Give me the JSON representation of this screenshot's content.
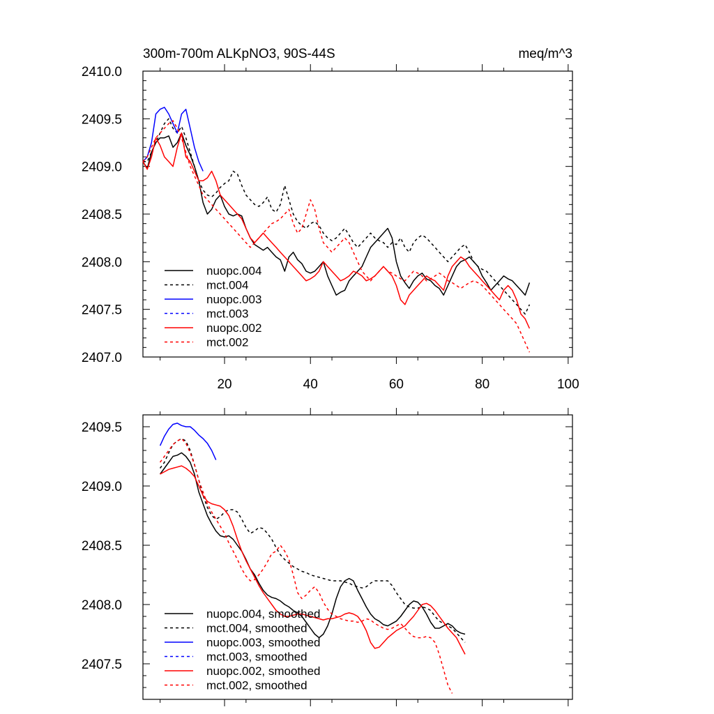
{
  "chart_data": [
    {
      "type": "line",
      "title": "300m-700m ALKpNO3, 90S-44S",
      "units": "meq/m^3",
      "xlim": [
        1,
        101
      ],
      "ylim": [
        2407.0,
        2410.0
      ],
      "xticks": [
        20,
        40,
        60,
        80,
        100
      ],
      "xtick_labels": [
        "20",
        "40",
        "60",
        "80",
        "100"
      ],
      "yticks": [
        2407.0,
        2407.5,
        2408.0,
        2408.5,
        2409.0,
        2409.5,
        2410.0
      ],
      "ytick_labels": [
        "2407.0",
        "2407.5",
        "2408.0",
        "2408.5",
        "2409.0",
        "2409.5",
        "2410.0"
      ],
      "legend_position": "bottom-left",
      "series": [
        {
          "name": "nuopc.004",
          "color": "#000000",
          "dash": "solid",
          "x_start": 1,
          "values": [
            2409.05,
            2408.98,
            2409.15,
            2409.25,
            2409.3,
            2409.3,
            2409.32,
            2409.2,
            2409.25,
            2409.35,
            2409.22,
            2409.12,
            2409.0,
            2408.85,
            2408.62,
            2408.5,
            2408.55,
            2408.65,
            2408.7,
            2408.58,
            2408.5,
            2408.48,
            2408.5,
            2408.48,
            2408.35,
            2408.25,
            2408.18,
            2408.15,
            2408.12,
            2408.15,
            2408.1,
            2408.05,
            2408.02,
            2407.9,
            2408.05,
            2408.1,
            2408.02,
            2407.98,
            2407.9,
            2407.88,
            2407.9,
            2407.95,
            2408.0,
            2407.85,
            2407.75,
            2407.65,
            2407.68,
            2407.7,
            2407.8,
            2407.85,
            2407.9,
            2407.95,
            2408.05,
            2408.15,
            2408.2,
            2408.25,
            2408.3,
            2408.35,
            2408.25,
            2408.0,
            2407.85,
            2407.78,
            2407.72,
            2407.8,
            2407.85,
            2407.88,
            2407.82,
            2407.8,
            2407.75,
            2407.72,
            2407.65,
            2407.75,
            2407.85,
            2407.95,
            2408.0,
            2408.02,
            2408.05,
            2408.0,
            2407.95,
            2407.85,
            2407.78,
            2407.7,
            2407.75,
            2407.8,
            2407.85,
            2407.82,
            2407.8,
            2407.75,
            2407.7,
            2407.65,
            2407.78
          ]
        },
        {
          "name": "mct.004",
          "color": "#000000",
          "dash": "dashed",
          "x_start": 1,
          "values": [
            2409.05,
            2409.05,
            2409.15,
            2409.25,
            2409.35,
            2409.45,
            2409.5,
            2409.4,
            2409.35,
            2409.42,
            2409.3,
            2409.15,
            2409.0,
            2408.85,
            2408.75,
            2408.7,
            2408.68,
            2408.72,
            2408.78,
            2408.82,
            2408.85,
            2408.95,
            2408.92,
            2408.8,
            2408.7,
            2408.65,
            2408.6,
            2408.58,
            2408.62,
            2408.68,
            2408.55,
            2408.52,
            2408.6,
            2408.8,
            2408.65,
            2408.5,
            2408.42,
            2408.38,
            2408.35,
            2408.4,
            2408.42,
            2408.38,
            2408.3,
            2408.25,
            2408.22,
            2408.25,
            2408.3,
            2408.35,
            2408.28,
            2408.2,
            2408.15,
            2408.2,
            2408.25,
            2408.3,
            2408.25,
            2408.22,
            2408.2,
            2408.15,
            2408.2,
            2408.18,
            2408.25,
            2408.15,
            2408.1,
            2408.2,
            2408.25,
            2408.28,
            2408.25,
            2408.2,
            2408.15,
            2408.1,
            2408.05,
            2408.0,
            2408.05,
            2408.1,
            2408.15,
            2408.18,
            2408.1,
            2408.0,
            2407.95,
            2407.92,
            2407.9,
            2407.85,
            2407.8,
            2407.75,
            2407.7,
            2407.65,
            2407.6,
            2407.55,
            2407.5,
            2407.45,
            2407.55
          ]
        },
        {
          "name": "nuopc.003",
          "color": "#0000ff",
          "dash": "solid",
          "x_start": 1,
          "values": [
            2409.05,
            2409.1,
            2409.25,
            2409.55,
            2409.6,
            2409.62,
            2409.55,
            2409.45,
            2409.35,
            2409.55,
            2409.6,
            2409.4,
            2409.2,
            2409.05,
            2408.95
          ]
        },
        {
          "name": "mct.003",
          "color": "#0000ff",
          "dash": "dashed",
          "x_start": 1,
          "values": []
        },
        {
          "name": "nuopc.002",
          "color": "#ff0000",
          "dash": "solid",
          "x_start": 1,
          "values": [
            2409.05,
            2408.97,
            2409.1,
            2409.3,
            2409.22,
            2409.1,
            2409.05,
            2409.0,
            2409.2,
            2409.35,
            2409.1,
            2409.05,
            2408.95,
            2408.85,
            2408.85,
            2408.88,
            2408.95,
            2408.85,
            2408.7,
            2408.65,
            2408.6,
            2408.55,
            2408.5,
            2408.45,
            2408.35,
            2408.25,
            2408.2,
            2408.25,
            2408.3,
            2408.25,
            2408.2,
            2408.15,
            2408.1,
            2408.05,
            2408.0,
            2407.95,
            2407.9,
            2407.85,
            2407.8,
            2407.82,
            2407.85,
            2407.9,
            2408.0,
            2407.95,
            2407.9,
            2407.85,
            2407.8,
            2407.82,
            2407.85,
            2407.9,
            2407.88,
            2407.85,
            2407.8,
            2407.82,
            2407.85,
            2407.9,
            2407.95,
            2407.9,
            2407.85,
            2407.75,
            2407.6,
            2407.55,
            2407.65,
            2407.7,
            2407.75,
            2407.8,
            2407.85,
            2407.82,
            2407.8,
            2407.75,
            2407.7,
            2407.85,
            2407.95,
            2408.0,
            2408.05,
            2408.02,
            2407.95,
            2407.9,
            2407.85,
            2407.8,
            2407.75,
            2407.7,
            2407.65,
            2407.6,
            2407.7,
            2407.75,
            2407.7,
            2407.6,
            2407.45,
            2407.4,
            2407.3
          ]
        },
        {
          "name": "mct.002",
          "color": "#ff0000",
          "dash": "dashed",
          "x_start": 1,
          "values": [
            2409.05,
            2409.1,
            2409.2,
            2409.3,
            2409.35,
            2409.4,
            2409.45,
            2409.48,
            2409.4,
            2409.3,
            2409.15,
            2409.0,
            2408.9,
            2408.8,
            2408.7,
            2408.65,
            2408.6,
            2408.55,
            2408.5,
            2408.45,
            2408.4,
            2408.35,
            2408.3,
            2408.25,
            2408.2,
            2408.15,
            2408.2,
            2408.25,
            2408.3,
            2408.35,
            2408.4,
            2408.42,
            2408.45,
            2408.5,
            2408.55,
            2408.4,
            2408.3,
            2408.35,
            2408.5,
            2408.65,
            2408.55,
            2408.35,
            2408.2,
            2408.15,
            2408.1,
            2408.15,
            2408.2,
            2408.25,
            2408.2,
            2408.1,
            2408.0,
            2407.9,
            2407.85,
            2407.8,
            2407.85,
            2407.9,
            2407.95,
            2407.9,
            2407.88,
            2407.85,
            2407.82,
            2407.8,
            2407.85,
            2407.9,
            2407.88,
            2407.85,
            2407.8,
            2407.82,
            2407.85,
            2407.88,
            2407.85,
            2407.8,
            2407.78,
            2407.75,
            2407.72,
            2407.75,
            2407.78,
            2407.8,
            2407.78,
            2407.75,
            2407.7,
            2407.65,
            2407.6,
            2407.55,
            2407.5,
            2407.45,
            2407.4,
            2407.35,
            2407.25,
            2407.15,
            2407.05
          ]
        }
      ]
    },
    {
      "type": "line",
      "title": "",
      "xlim": [
        1,
        101
      ],
      "ylim": [
        2407.2,
        2409.6
      ],
      "xticks": [
        20,
        40,
        60,
        80,
        100
      ],
      "xtick_labels": [],
      "yticks": [
        2407.5,
        2408.0,
        2408.5,
        2409.0,
        2409.5
      ],
      "ytick_labels": [
        "2407.5",
        "2408.0",
        "2408.5",
        "2409.0",
        "2409.5"
      ],
      "legend_position": "bottom-left",
      "series": [
        {
          "name": "nuopc.004, smoothed",
          "color": "#000000",
          "dash": "solid",
          "x_start": 5,
          "values": [
            2409.1,
            2409.15,
            2409.2,
            2409.25,
            2409.26,
            2409.28,
            2409.25,
            2409.2,
            2409.1,
            2408.95,
            2408.85,
            2408.75,
            2408.68,
            2408.62,
            2408.58,
            2408.57,
            2408.58,
            2408.55,
            2408.5,
            2408.45,
            2408.38,
            2408.3,
            2408.25,
            2408.18,
            2408.12,
            2408.08,
            2408.06,
            2408.05,
            2408.03,
            2408.0,
            2407.98,
            2407.95,
            2407.93,
            2407.9,
            2407.85,
            2407.8,
            2407.75,
            2407.72,
            2407.75,
            2407.82,
            2407.92,
            2408.05,
            2408.15,
            2408.2,
            2408.22,
            2408.2,
            2408.12,
            2408.05,
            2407.98,
            2407.92,
            2407.88,
            2407.86,
            2407.83,
            2407.82,
            2407.84,
            2407.86,
            2407.9,
            2407.95,
            2408.0,
            2408.03,
            2408.02,
            2407.98,
            2407.92,
            2407.85,
            2407.8,
            2407.8,
            2407.82,
            2407.84,
            2407.82,
            2407.78,
            2407.76,
            2407.75
          ]
        },
        {
          "name": "mct.004, smoothed",
          "color": "#000000",
          "dash": "dashed",
          "x_start": 5,
          "values": [
            2409.15,
            2409.2,
            2409.28,
            2409.35,
            2409.38,
            2409.4,
            2409.38,
            2409.3,
            2409.18,
            2409.05,
            2408.92,
            2408.82,
            2408.75,
            2408.72,
            2408.74,
            2408.78,
            2408.8,
            2408.8,
            2408.78,
            2408.72,
            2408.65,
            2408.6,
            2408.62,
            2408.65,
            2408.64,
            2408.6,
            2408.55,
            2408.48,
            2408.42,
            2408.38,
            2408.35,
            2408.32,
            2408.3,
            2408.28,
            2408.27,
            2408.25,
            2408.24,
            2408.23,
            2408.22,
            2408.21,
            2408.2,
            2408.2,
            2408.2,
            2408.19,
            2408.18,
            2408.16,
            2408.15,
            2408.14,
            2408.15,
            2408.18,
            2408.2,
            2408.2,
            2408.2,
            2408.2,
            2408.16,
            2408.1,
            2408.05,
            2408.0,
            2407.98,
            2407.97,
            2407.97,
            2407.98,
            2407.97,
            2407.95,
            2407.9,
            2407.86,
            2407.84,
            2407.82,
            2407.8,
            2407.76,
            2407.72,
            2407.68
          ]
        },
        {
          "name": "nuopc.003, smoothed",
          "color": "#0000ff",
          "dash": "solid",
          "x_start": 5,
          "values": [
            2409.34,
            2409.42,
            2409.48,
            2409.52,
            2409.53,
            2409.51,
            2409.5,
            2409.5,
            2409.47,
            2409.43,
            2409.4,
            2409.36,
            2409.3,
            2409.22
          ]
        },
        {
          "name": "mct.003, smoothed",
          "color": "#0000ff",
          "dash": "dashed",
          "x_start": 5,
          "values": []
        },
        {
          "name": "nuopc.002, smoothed",
          "color": "#ff0000",
          "dash": "solid",
          "x_start": 5,
          "values": [
            2409.1,
            2409.12,
            2409.14,
            2409.15,
            2409.16,
            2409.17,
            2409.15,
            2409.12,
            2409.08,
            2409.0,
            2408.92,
            2408.87,
            2408.85,
            2408.84,
            2408.83,
            2408.8,
            2408.75,
            2408.66,
            2408.55,
            2408.45,
            2408.37,
            2408.3,
            2408.23,
            2408.16,
            2408.1,
            2408.05,
            2408.0,
            2407.95,
            2407.92,
            2407.9,
            2407.9,
            2407.91,
            2407.92,
            2407.92,
            2407.91,
            2407.9,
            2407.89,
            2407.88,
            2407.87,
            2407.88,
            2407.88,
            2407.89,
            2407.9,
            2407.92,
            2407.93,
            2407.92,
            2407.9,
            2407.85,
            2407.78,
            2407.68,
            2407.63,
            2407.64,
            2407.68,
            2407.72,
            2407.75,
            2407.78,
            2407.8,
            2407.82,
            2407.86,
            2407.9,
            2407.95,
            2408.0,
            2408.01,
            2407.99,
            2407.95,
            2407.9,
            2407.85,
            2407.8,
            2407.76,
            2407.72,
            2407.65,
            2407.58
          ]
        },
        {
          "name": "mct.002, smoothed",
          "color": "#ff0000",
          "dash": "dashed",
          "x_start": 5,
          "values": [
            2409.2,
            2409.25,
            2409.3,
            2409.35,
            2409.38,
            2409.4,
            2409.36,
            2409.28,
            2409.18,
            2409.05,
            2408.95,
            2408.85,
            2408.78,
            2408.72,
            2408.66,
            2408.6,
            2408.52,
            2408.45,
            2408.38,
            2408.3,
            2408.24,
            2408.2,
            2408.21,
            2408.25,
            2408.3,
            2408.36,
            2408.43,
            2408.45,
            2408.5,
            2408.45,
            2408.38,
            2408.25,
            2408.1,
            2408.05,
            2408.08,
            2408.12,
            2408.15,
            2408.1,
            2408.02,
            2407.96,
            2407.92,
            2407.9,
            2407.88,
            2407.87,
            2407.86,
            2407.86,
            2407.85,
            2407.86,
            2407.88,
            2407.87,
            2407.84,
            2407.82,
            2407.8,
            2407.79,
            2407.8,
            2407.82,
            2407.84,
            2407.8,
            2407.76,
            2407.73,
            2407.72,
            2407.72,
            2407.73,
            2407.72,
            2407.68,
            2407.58,
            2407.45,
            2407.32,
            2407.25
          ]
        }
      ]
    }
  ]
}
